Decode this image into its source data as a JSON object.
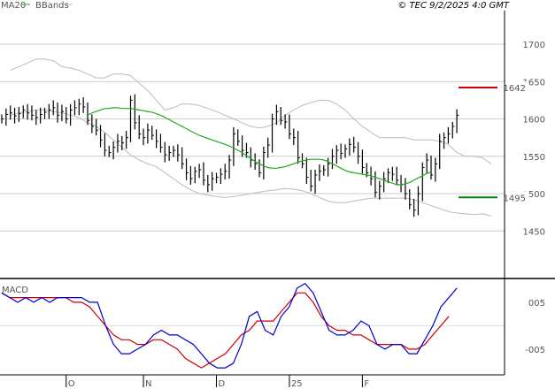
{
  "chart_data": {
    "type": "line",
    "credit": "© TEC 9/2/2025 4:0 GMT",
    "legend": [
      {
        "label": "MA20",
        "color": "#22aa22"
      },
      {
        "label": "BBands",
        "color": "#bbbbbb"
      }
    ],
    "price_panel": {
      "ylim": [
        1390,
        1745
      ],
      "y_ticks": [
        1450,
        1500,
        1550,
        1600,
        1650,
        1700
      ],
      "y_tick_labels": [
        "1450",
        "1500",
        "1550",
        "1600",
        "1650",
        "1700"
      ],
      "grid": true,
      "colors": {
        "bar": "#000000",
        "ma": "#22aa22",
        "bands": "#bbbbbb"
      },
      "close_series": [
        1600,
        1606,
        1608,
        1604,
        1607,
        1612,
        1608,
        1605,
        1602,
        1606,
        1609,
        1612,
        1615,
        1605,
        1610,
        1600,
        1612,
        1615,
        1620,
        1616,
        1598,
        1590,
        1585,
        1572,
        1558,
        1555,
        1562,
        1570,
        1568,
        1575,
        1625,
        1595,
        1580,
        1575,
        1585,
        1578,
        1570,
        1562,
        1552,
        1555,
        1558,
        1552,
        1540,
        1528,
        1520,
        1530,
        1532,
        1518,
        1512,
        1520,
        1522,
        1526,
        1530,
        1545,
        1580,
        1570,
        1558,
        1555,
        1545,
        1540,
        1528,
        1555,
        1565,
        1600,
        1610,
        1598,
        1596,
        1580,
        1575,
        1548,
        1540,
        1522,
        1510,
        1525,
        1530,
        1532,
        1540,
        1550,
        1558,
        1554,
        1560,
        1566,
        1562,
        1550,
        1535,
        1528,
        1520,
        1502,
        1510,
        1520,
        1528,
        1526,
        1518,
        1512,
        1500,
        1485,
        1478,
        1500,
        1535,
        1545,
        1525,
        1540,
        1570,
        1575,
        1580,
        1590,
        1605
      ],
      "ma20": [
        1605,
        1608,
        1610,
        1612,
        1614,
        1614,
        1615,
        1615,
        1614,
        1614,
        1614,
        1613,
        1612,
        1611,
        1610,
        1609,
        1607,
        1605,
        1602,
        1599,
        1596,
        1593,
        1590,
        1587,
        1584,
        1581,
        1578,
        1576,
        1574,
        1572,
        1570,
        1568,
        1566,
        1564,
        1561,
        1558,
        1555,
        1551,
        1547,
        1543,
        1540,
        1537,
        1535,
        1534,
        1534,
        1535,
        1536,
        1538,
        1540,
        1542,
        1544,
        1545,
        1546,
        1546,
        1546,
        1545,
        1543,
        1540,
        1537,
        1534,
        1531,
        1529,
        1528,
        1527,
        1526,
        1525,
        1524,
        1522,
        1520,
        1518,
        1516,
        1514,
        1512,
        1512,
        1513,
        1515,
        1518,
        1521,
        1524,
        1527,
        1529
      ],
      "ma20_start": 20,
      "bb_upper": [
        1665,
        1670,
        1675,
        1680,
        1680,
        1678,
        1670,
        1668,
        1665,
        1660,
        1655,
        1655,
        1660,
        1660,
        1658,
        1648,
        1638,
        1625,
        1612,
        1615,
        1620,
        1620,
        1618,
        1614,
        1610,
        1605,
        1600,
        1595,
        1590,
        1588,
        1590,
        1595,
        1605,
        1612,
        1618,
        1622,
        1625,
        1625,
        1620,
        1612,
        1600,
        1590,
        1582,
        1575,
        1575,
        1575,
        1575,
        1572,
        1572,
        1572,
        1570,
        1566,
        1555,
        1550,
        1550,
        1548,
        1540
      ],
      "bb_lower": [
        1605,
        1608,
        1610,
        1612,
        1612,
        1610,
        1608,
        1605,
        1602,
        1595,
        1590,
        1582,
        1572,
        1562,
        1552,
        1545,
        1540,
        1536,
        1528,
        1520,
        1512,
        1505,
        1500,
        1498,
        1496,
        1495,
        1496,
        1498,
        1500,
        1502,
        1504,
        1505,
        1507,
        1506,
        1504,
        1500,
        1495,
        1490,
        1488,
        1488,
        1490,
        1492,
        1494,
        1494,
        1494,
        1494,
        1494,
        1492,
        1488,
        1484,
        1480,
        1476,
        1474,
        1473,
        1472,
        1473,
        1470
      ],
      "bb_start": 2,
      "bb_step": 2,
      "levels": [
        {
          "value": 1642,
          "label": "1642",
          "color": "#cc0000"
        },
        {
          "value": 1495,
          "label": "1495",
          "color": "#008800"
        }
      ]
    },
    "macd_panel": {
      "title": "MACD",
      "ylim": [
        -0.105,
        0.095
      ],
      "y_ticks": [
        0.05,
        -0.05
      ],
      "y_tick_labels": [
        "005",
        "-005"
      ],
      "colors": {
        "macd": "#0000cc",
        "signal": "#cc0000"
      },
      "macd": [
        0.07,
        0.06,
        0.05,
        0.06,
        0.05,
        0.06,
        0.05,
        0.06,
        0.06,
        0.06,
        0.06,
        0.05,
        0.05,
        0.0,
        -0.04,
        -0.06,
        -0.06,
        -0.05,
        -0.04,
        -0.02,
        -0.01,
        -0.02,
        -0.02,
        -0.03,
        -0.04,
        -0.06,
        -0.08,
        -0.09,
        -0.09,
        -0.08,
        -0.04,
        0.02,
        0.03,
        -0.01,
        -0.02,
        0.02,
        0.04,
        0.08,
        0.09,
        0.07,
        0.03,
        -0.01,
        -0.02,
        -0.02,
        -0.01,
        0.01,
        0.0,
        -0.04,
        -0.05,
        -0.04,
        -0.04,
        -0.06,
        -0.06,
        -0.03,
        0.0,
        0.04,
        0.06,
        0.08
      ],
      "signal": [
        0.07,
        0.06,
        0.06,
        0.06,
        0.06,
        0.06,
        0.06,
        0.06,
        0.06,
        0.05,
        0.05,
        0.04,
        0.02,
        0.0,
        -0.02,
        -0.03,
        -0.03,
        -0.04,
        -0.04,
        -0.03,
        -0.03,
        -0.04,
        -0.05,
        -0.07,
        -0.08,
        -0.09,
        -0.08,
        -0.07,
        -0.06,
        -0.04,
        -0.02,
        -0.01,
        0.01,
        0.01,
        0.01,
        0.03,
        0.05,
        0.07,
        0.07,
        0.05,
        0.02,
        0.0,
        -0.01,
        -0.01,
        -0.02,
        -0.02,
        -0.03,
        -0.04,
        -0.04,
        -0.04,
        -0.04,
        -0.05,
        -0.05,
        -0.04,
        -0.02,
        0.0,
        0.02
      ],
      "zero_line": true
    },
    "x_axis": {
      "tick_labels": [
        "O",
        "N",
        "D",
        "25",
        "F"
      ],
      "tick_index": [
        15,
        33,
        50,
        67,
        84
      ]
    }
  }
}
